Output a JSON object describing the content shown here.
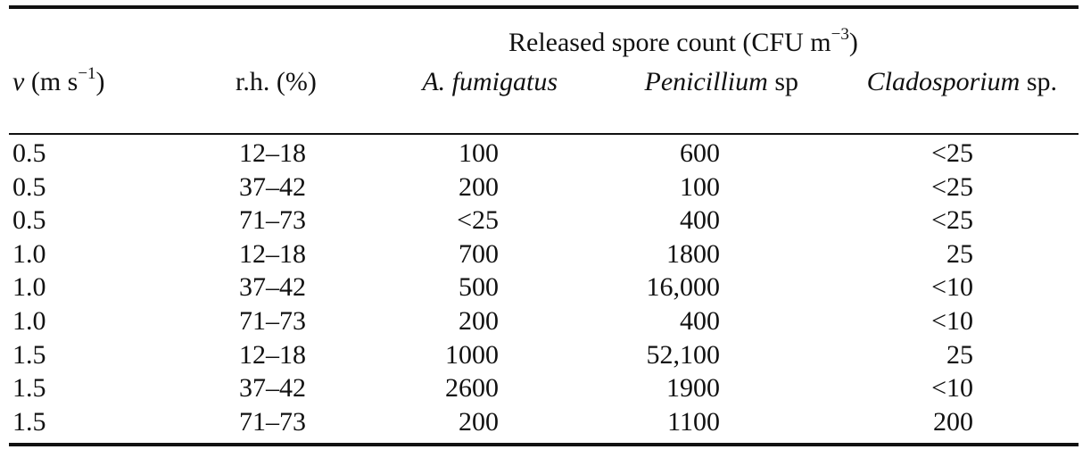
{
  "table": {
    "group_header": "Released spore count (CFU m",
    "group_header_exp": "−3",
    "group_header_close": ")",
    "headers": {
      "v_symbol": "v",
      "v_unit": " (m s",
      "v_exp": "−1",
      "v_close": ")",
      "rh": "r.h. (%)",
      "af": "A. fumigatus",
      "pen_italic": "Penicillium",
      "pen_rest": " sp",
      "clad_italic": "Cladosporium",
      "clad_rest": " sp."
    },
    "rows": [
      {
        "v": "0.5",
        "rh": "12–18",
        "af": "100",
        "pen": "600",
        "clad": "<25"
      },
      {
        "v": "0.5",
        "rh": "37–42",
        "af": "200",
        "pen": "100",
        "clad": "<25"
      },
      {
        "v": "0.5",
        "rh": "71–73",
        "af": "<25",
        "pen": "400",
        "clad": "<25"
      },
      {
        "v": "1.0",
        "rh": "12–18",
        "af": "700",
        "pen": "1800",
        "clad": "25"
      },
      {
        "v": "1.0",
        "rh": "37–42",
        "af": "500",
        "pen": "16,000",
        "clad": "<10"
      },
      {
        "v": "1.0",
        "rh": "71–73",
        "af": "200",
        "pen": "400",
        "clad": "<10"
      },
      {
        "v": "1.5",
        "rh": "12–18",
        "af": "1000",
        "pen": "52,100",
        "clad": "25"
      },
      {
        "v": "1.5",
        "rh": "37–42",
        "af": "2600",
        "pen": "1900",
        "clad": "<10"
      },
      {
        "v": "1.5",
        "rh": "71–73",
        "af": "200",
        "pen": "1100",
        "clad": "200"
      }
    ]
  }
}
